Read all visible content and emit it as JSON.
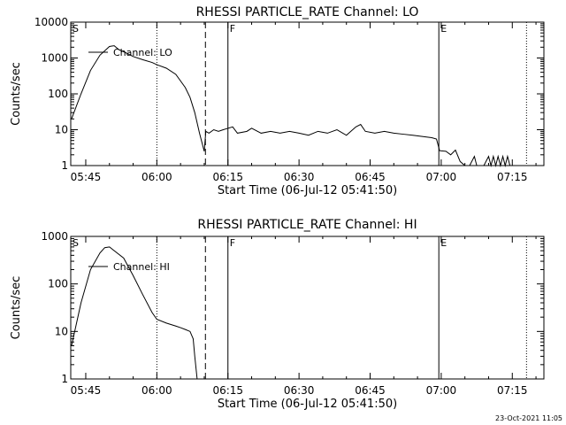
{
  "footer_timestamp": "23-Oct-2021 11:05",
  "chart_data": [
    {
      "type": "line",
      "title": "RHESSI PARTICLE_RATE Channel: LO",
      "xlabel": "Start Time (06-Jul-12 05:41:50)",
      "ylabel": "Counts/sec",
      "y_scale": "log",
      "xlim": [
        "05:41:50",
        "07:21:40"
      ],
      "ylim": [
        1,
        10000
      ],
      "xticks": [
        "05:45",
        "06:00",
        "06:15",
        "06:30",
        "06:45",
        "07:00",
        "07:15"
      ],
      "yticks": [
        "1",
        "10",
        "100",
        "1000",
        "10000"
      ],
      "legend": {
        "label": "Channel: LO",
        "placement": "top-left"
      },
      "markers": [
        {
          "label": "S",
          "time": "05:41:50",
          "style": "solid"
        },
        {
          "label": "",
          "time": "06:00:00",
          "style": "dotted"
        },
        {
          "label": "",
          "time": "06:10:15",
          "style": "dashed"
        },
        {
          "label": "F",
          "time": "06:15:00",
          "style": "solid"
        },
        {
          "label": "E",
          "time": "06:59:30",
          "style": "solid"
        },
        {
          "label": "",
          "time": "07:18:00",
          "style": "dotted"
        }
      ],
      "series": [
        {
          "name": "Channel: LO",
          "points": [
            [
              "05:42",
              20
            ],
            [
              "05:44",
              100
            ],
            [
              "05:46",
              450
            ],
            [
              "05:48",
              1200
            ],
            [
              "05:50",
              2100
            ],
            [
              "05:51",
              2200
            ],
            [
              "05:52",
              1700
            ],
            [
              "05:53",
              1500
            ],
            [
              "05:55",
              1100
            ],
            [
              "05:57",
              900
            ],
            [
              "05:59",
              750
            ],
            [
              "06:00",
              650
            ],
            [
              "06:02",
              520
            ],
            [
              "06:04",
              350
            ],
            [
              "06:06",
              150
            ],
            [
              "06:07",
              80
            ],
            [
              "06:08",
              30
            ],
            [
              "06:09",
              8
            ],
            [
              "06:10",
              2.5
            ],
            [
              "06:10:20",
              9
            ],
            [
              "06:11",
              8
            ],
            [
              "06:12",
              10
            ],
            [
              "06:13",
              9
            ],
            [
              "06:14",
              10
            ],
            [
              "06:16",
              12
            ],
            [
              "06:17",
              8
            ],
            [
              "06:19",
              9
            ],
            [
              "06:20",
              11
            ],
            [
              "06:22",
              8
            ],
            [
              "06:24",
              9
            ],
            [
              "06:26",
              8
            ],
            [
              "06:28",
              9
            ],
            [
              "06:30",
              8
            ],
            [
              "06:32",
              7
            ],
            [
              "06:34",
              9
            ],
            [
              "06:36",
              8
            ],
            [
              "06:38",
              10
            ],
            [
              "06:40",
              7
            ],
            [
              "06:42",
              12
            ],
            [
              "06:43",
              14
            ],
            [
              "06:44",
              9
            ],
            [
              "06:46",
              8
            ],
            [
              "06:48",
              9
            ],
            [
              "06:50",
              8
            ],
            [
              "06:52",
              7.5
            ],
            [
              "06:54",
              7
            ],
            [
              "06:56",
              6.5
            ],
            [
              "06:58",
              6
            ],
            [
              "06:59",
              5.5
            ],
            [
              "06:59:40",
              2.6
            ],
            [
              "07:01",
              2.5
            ],
            [
              "07:02",
              2
            ],
            [
              "07:03",
              2.7
            ],
            [
              "07:04",
              1.3
            ],
            [
              "07:05",
              1
            ],
            [
              "07:06",
              1
            ],
            [
              "07:07",
              1.8
            ],
            [
              "07:07:30",
              1
            ],
            [
              "07:09",
              1
            ],
            [
              "07:10",
              1.8
            ],
            [
              "07:10:30",
              1
            ],
            [
              "07:11",
              1.8
            ],
            [
              "07:11:30",
              1
            ],
            [
              "07:12",
              1.8
            ],
            [
              "07:12:30",
              1
            ],
            [
              "07:13",
              1.8
            ],
            [
              "07:13:30",
              1
            ],
            [
              "07:14",
              1.8
            ],
            [
              "07:14:30",
              1
            ]
          ]
        }
      ]
    },
    {
      "type": "line",
      "title": "RHESSI PARTICLE_RATE Channel: HI",
      "xlabel": "Start Time (06-Jul-12 05:41:50)",
      "ylabel": "Counts/sec",
      "y_scale": "log",
      "xlim": [
        "05:41:50",
        "07:21:40"
      ],
      "ylim": [
        1,
        1000
      ],
      "xticks": [
        "05:45",
        "06:00",
        "06:15",
        "06:30",
        "06:45",
        "07:00",
        "07:15"
      ],
      "yticks": [
        "1",
        "10",
        "100",
        "1000"
      ],
      "legend": {
        "label": "Channel: HI",
        "placement": "top-left"
      },
      "markers": [
        {
          "label": "S",
          "time": "05:41:50",
          "style": "solid"
        },
        {
          "label": "",
          "time": "06:00:00",
          "style": "dotted"
        },
        {
          "label": "",
          "time": "06:10:15",
          "style": "dashed"
        },
        {
          "label": "F",
          "time": "06:15:00",
          "style": "solid"
        },
        {
          "label": "E",
          "time": "06:59:30",
          "style": "solid"
        },
        {
          "label": "",
          "time": "07:18:00",
          "style": "dotted"
        }
      ],
      "series": [
        {
          "name": "Channel: HI",
          "points": [
            [
              "05:42",
              5
            ],
            [
              "05:44",
              40
            ],
            [
              "05:46",
              200
            ],
            [
              "05:48",
              450
            ],
            [
              "05:49",
              580
            ],
            [
              "05:50",
              600
            ],
            [
              "05:51",
              500
            ],
            [
              "05:53",
              350
            ],
            [
              "05:55",
              150
            ],
            [
              "05:57",
              60
            ],
            [
              "05:59",
              25
            ],
            [
              "06:00",
              18
            ],
            [
              "06:02",
              15
            ],
            [
              "06:04",
              13
            ],
            [
              "06:05",
              12
            ],
            [
              "06:06",
              11
            ],
            [
              "06:07",
              10
            ],
            [
              "06:07:40",
              7
            ],
            [
              "06:08",
              3
            ],
            [
              "06:08:30",
              1
            ]
          ]
        }
      ]
    }
  ]
}
